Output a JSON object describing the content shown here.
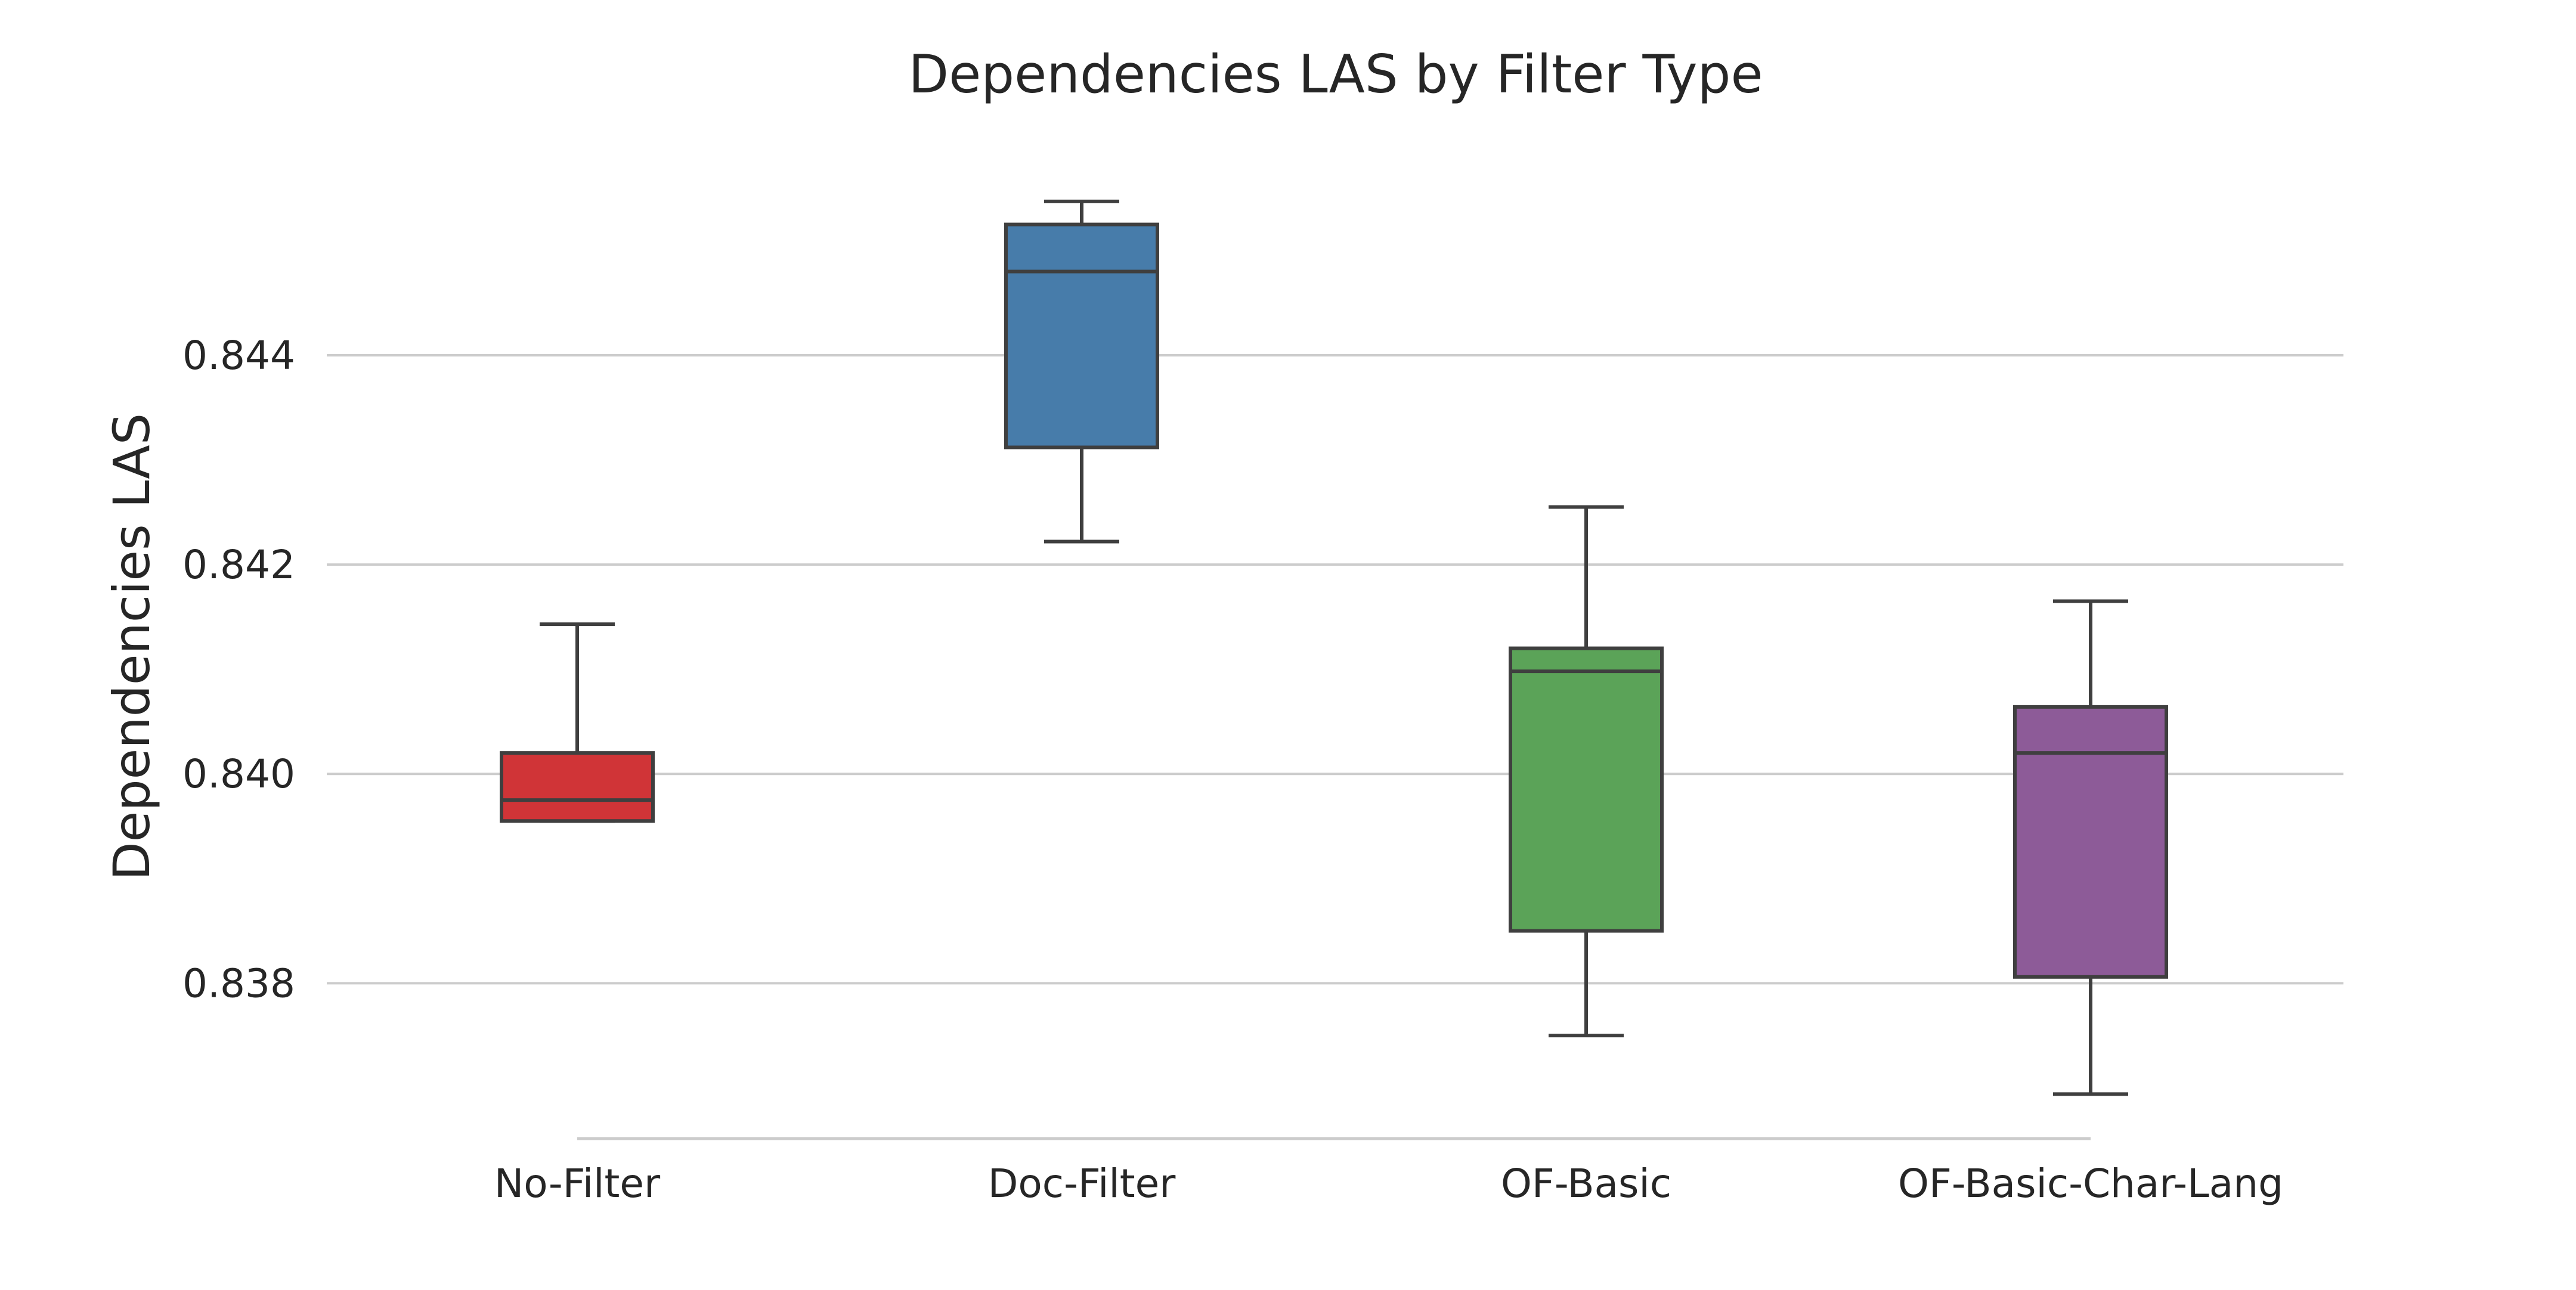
{
  "chart_data": {
    "type": "box",
    "title": "Dependencies LAS by Filter Type",
    "xlabel": "",
    "ylabel": "Dependencies LAS",
    "ylim": [
      0.8368,
      0.8458
    ],
    "yticks": [
      0.838,
      0.84,
      0.842,
      0.844
    ],
    "ytick_labels": [
      "0.838",
      "0.840",
      "0.842",
      "0.844"
    ],
    "grid": "horizontal",
    "categories": [
      "No-Filter",
      "Doc-Filter",
      "OF-Basic",
      "OF-Basic-Char-Lang"
    ],
    "boxes": [
      {
        "name": "No-Filter",
        "color": "#d03437",
        "whislo": 0.83955,
        "q1": 0.83955,
        "med": 0.83975,
        "q3": 0.8402,
        "whishi": 0.84143
      },
      {
        "name": "Doc-Filter",
        "color": "#477caa",
        "whislo": 0.84222,
        "q1": 0.84312,
        "med": 0.8448,
        "q3": 0.84525,
        "whishi": 0.84547
      },
      {
        "name": "OF-Basic",
        "color": "#5ba358",
        "whislo": 0.8375,
        "q1": 0.8385,
        "med": 0.84098,
        "q3": 0.8412,
        "whishi": 0.84255
      },
      {
        "name": "OF-Basic-Char-Lang",
        "color": "#8d5b98",
        "whislo": 0.83694,
        "q1": 0.83806,
        "med": 0.8402,
        "q3": 0.84064,
        "whishi": 0.84165
      }
    ]
  }
}
